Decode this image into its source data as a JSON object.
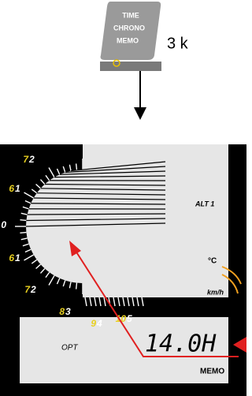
{
  "button": {
    "lines": [
      "TIME",
      "CHRONO",
      "MEMO"
    ]
  },
  "label": "3 k",
  "dashboard": {
    "scale": [
      {
        "a": "7",
        "b": "2"
      },
      {
        "a": "6",
        "b": "1"
      },
      {
        "a": "0",
        "b": ""
      },
      {
        "a": "6",
        "b": "1"
      },
      {
        "a": "7",
        "b": "2"
      },
      {
        "a": "8",
        "b": "3"
      },
      {
        "a": "9",
        "b": "4"
      },
      {
        "a": "10",
        "b": "5"
      }
    ],
    "alt": "ALT 1",
    "temp": "°C",
    "speed": "km/h",
    "opt": "OPT",
    "display": "14.0H",
    "memo": "MEMO"
  }
}
